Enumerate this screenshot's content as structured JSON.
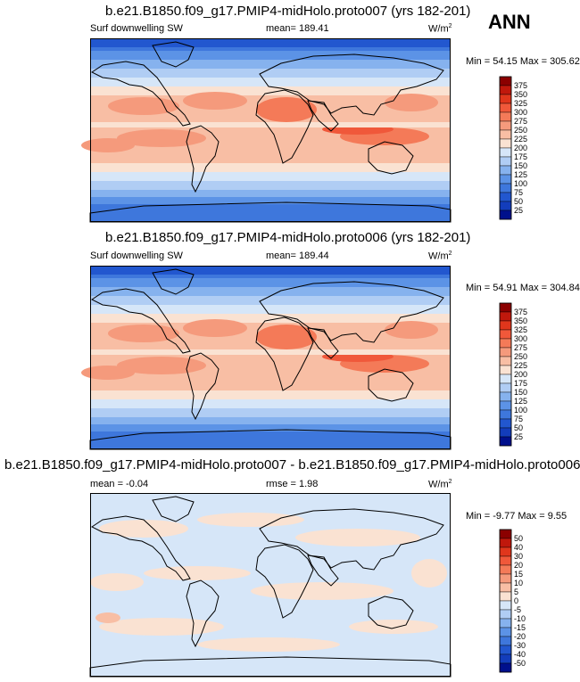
{
  "season": "ANN",
  "panels": [
    {
      "title": "b.e21.B1850.f09_g17.PMIP4-midHolo.proto007 (yrs 182-201)",
      "left_label": "Surf downwelling SW",
      "mid_label": "mean= 189.41",
      "units": "W/m",
      "units_sup": "2",
      "minmax": "Min =  54.15 Max = 305.62"
    },
    {
      "title": "b.e21.B1850.f09_g17.PMIP4-midHolo.proto006 (yrs 182-201)",
      "left_label": "Surf downwelling SW",
      "mid_label": "mean= 189.44",
      "units": "W/m",
      "units_sup": "2",
      "minmax": "Min =  54.91 Max = 304.84"
    },
    {
      "title": "b.e21.B1850.f09_g17.PMIP4-midHolo.proto007 - b.e21.B1850.f09_g17.PMIP4-midHolo.proto006",
      "left_label": "mean =  -0.04",
      "mid_label": "rmse =   1.98",
      "units": "W/m",
      "units_sup": "2",
      "minmax": "Min =  -9.77 Max =   9.55"
    }
  ],
  "chart_data": [
    {
      "type": "heatmap",
      "title": "b.e21.B1850.f09_g17.PMIP4-midHolo.proto007 (yrs 182-201)",
      "variable": "Surf downwelling SW",
      "units": "W/m2",
      "mean": 189.41,
      "min": 54.15,
      "max": 305.62,
      "colorbar_levels": [
        "375",
        "350",
        "325",
        "300",
        "275",
        "250",
        "225",
        "200",
        "175",
        "150",
        "125",
        "100",
        "75",
        "50",
        "25"
      ],
      "colorbar_colors": [
        "#8b0000",
        "#c0180c",
        "#e0361c",
        "#f0583a",
        "#f47a58",
        "#f59a7c",
        "#f8bea4",
        "#fae2d2",
        "#d6e6f8",
        "#b0cdf4",
        "#86b2ee",
        "#5c93e6",
        "#3e77dc",
        "#2257cf",
        "#133dbb",
        "#00108c"
      ]
    },
    {
      "type": "heatmap",
      "title": "b.e21.B1850.f09_g17.PMIP4-midHolo.proto006 (yrs 182-201)",
      "variable": "Surf downwelling SW",
      "units": "W/m2",
      "mean": 189.44,
      "min": 54.91,
      "max": 304.84,
      "colorbar_levels": [
        "375",
        "350",
        "325",
        "300",
        "275",
        "250",
        "225",
        "200",
        "175",
        "150",
        "125",
        "100",
        "75",
        "50",
        "25"
      ],
      "colorbar_colors": [
        "#8b0000",
        "#c0180c",
        "#e0361c",
        "#f0583a",
        "#f47a58",
        "#f59a7c",
        "#f8bea4",
        "#fae2d2",
        "#d6e6f8",
        "#b0cdf4",
        "#86b2ee",
        "#5c93e6",
        "#3e77dc",
        "#2257cf",
        "#133dbb",
        "#00108c"
      ]
    },
    {
      "type": "heatmap",
      "title": "b.e21.B1850.f09_g17.PMIP4-midHolo.proto007 - b.e21.B1850.f09_g17.PMIP4-midHolo.proto006",
      "units": "W/m2",
      "mean": -0.04,
      "rmse": 1.98,
      "min": -9.77,
      "max": 9.55,
      "colorbar_levels": [
        "50",
        "40",
        "30",
        "20",
        "15",
        "10",
        "5",
        "0",
        "-5",
        "-10",
        "-15",
        "-20",
        "-30",
        "-40",
        "-50"
      ],
      "colorbar_colors": [
        "#8b0000",
        "#c0180c",
        "#e0361c",
        "#f0583a",
        "#f47a58",
        "#f59a7c",
        "#f8bea4",
        "#fae2d2",
        "#d6e6f8",
        "#b0cdf4",
        "#86b2ee",
        "#5c93e6",
        "#3e77dc",
        "#2257cf",
        "#133dbb",
        "#00108c"
      ]
    }
  ]
}
